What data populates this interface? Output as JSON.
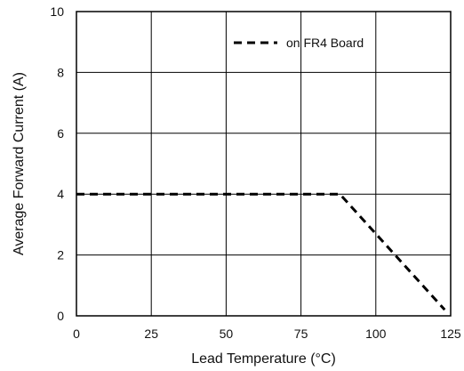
{
  "chart_data": {
    "type": "line",
    "title": "",
    "xlabel": "Lead Temperature (°C)",
    "ylabel": "Average Forward Current (A)",
    "xlim": [
      0,
      125
    ],
    "ylim": [
      0,
      10
    ],
    "x_ticks": [
      0,
      25,
      50,
      75,
      100,
      125
    ],
    "y_ticks": [
      0,
      2,
      4,
      6,
      8,
      10
    ],
    "grid": true,
    "legend_position": "top-right",
    "series": [
      {
        "name": "on FR4 Board",
        "line_style": "dashed",
        "color": "#000000",
        "x": [
          0,
          88,
          123
        ],
        "y": [
          4,
          4,
          0.2
        ]
      }
    ]
  }
}
